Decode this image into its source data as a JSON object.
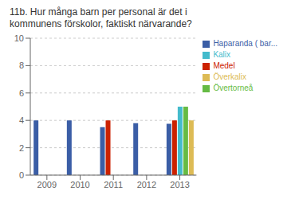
{
  "chart_data": {
    "type": "bar",
    "title": "11b. Hur många barn per personal är det i\nkommunens förskolor, faktiskt närvarande?",
    "categories": [
      "2009",
      "2010",
      "2011",
      "2012",
      "2013"
    ],
    "series": [
      {
        "name": "Haparanda ( bar...",
        "color": "#3B5EA6",
        "values": [
          4.0,
          4.0,
          3.5,
          3.8,
          3.75
        ]
      },
      {
        "name": "Medel",
        "color": "#CC2200",
        "values": [
          null,
          null,
          4.0,
          null,
          4.0
        ]
      },
      {
        "name": "Kalix",
        "color": "#44BBCC",
        "values": [
          null,
          null,
          null,
          null,
          5.0
        ]
      },
      {
        "name": "Övertorneå",
        "color": "#66BB44",
        "values": [
          null,
          null,
          null,
          null,
          5.0
        ]
      },
      {
        "name": "Överkalix",
        "color": "#DDBB55",
        "values": [
          null,
          null,
          null,
          null,
          4.0
        ]
      }
    ],
    "ylim": [
      0,
      10
    ],
    "yticks": [
      0,
      2,
      4,
      6,
      8,
      10
    ],
    "grid": true,
    "legend": "right"
  }
}
